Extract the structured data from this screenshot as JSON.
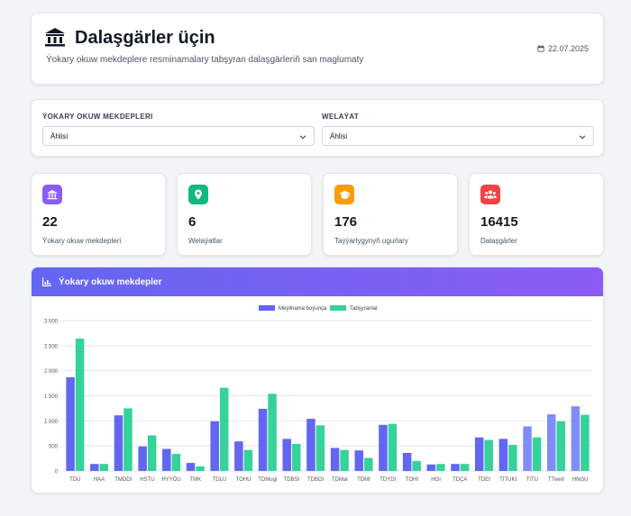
{
  "header": {
    "title": "Dalaşgärler üçin",
    "subtitle": "Ýokary okuw mekdeplere resminamalary tabşyran dalaşgärleriň san maglumaty",
    "date": "22.07.2025"
  },
  "filters": [
    {
      "label": "ÝOKARY OKUW MEKDEPLERI",
      "value": "Ählisi"
    },
    {
      "label": "WELAÝAT",
      "value": "Ählisi"
    }
  ],
  "stats": [
    {
      "value": "22",
      "label": "Ýokary okuw mekdepleri",
      "color": "#8b5cf6",
      "icon": "university-icon"
    },
    {
      "value": "6",
      "label": "Welaýatlar",
      "color": "#10b981",
      "icon": "map-pin-icon"
    },
    {
      "value": "176",
      "label": "Taýýarlygynyň ugurlary",
      "color": "#f59e0b",
      "icon": "graduation-cap-icon"
    },
    {
      "value": "16415",
      "label": "Dalaşgärler",
      "color": "#ef4444",
      "icon": "users-icon"
    }
  ],
  "chart_section": {
    "title": "Ýokary okuw mekdepler",
    "icon": "chart-icon"
  },
  "colors": {
    "accent": "#6366f1",
    "series_1": "#6366f1",
    "series_2": "#34d399",
    "series_1_alt": "#818cf8"
  },
  "chart_data": {
    "type": "bar",
    "categories": [
      "TDU",
      "HAA",
      "TMDDI",
      "HSTU",
      "HYYÖU",
      "TMK",
      "TDLU",
      "TOHU",
      "TDMugi",
      "TDBSI",
      "TDBGI",
      "TDMaI",
      "TDMI",
      "TDYDI",
      "TOHI",
      "HGI",
      "TDÇA",
      "TDEI",
      "TİTUKI",
      "TITU",
      "TTweII",
      "HNGU"
    ],
    "series": [
      {
        "name": "Meýilnama boýunça",
        "values": [
          1870,
          140,
          1110,
          490,
          440,
          160,
          990,
          590,
          1240,
          640,
          1040,
          460,
          410,
          920,
          360,
          130,
          140,
          670,
          640,
          890,
          1130,
          1290
        ]
      },
      {
        "name": "Tabşyranlar",
        "values": [
          2640,
          140,
          1250,
          710,
          340,
          90,
          1660,
          420,
          1540,
          540,
          910,
          420,
          260,
          940,
          200,
          140,
          140,
          620,
          520,
          670,
          990,
          1120
        ]
      }
    ],
    "ylim": [
      0,
      3000
    ],
    "yticks": [
      "0",
      "500",
      "1 000",
      "1 500",
      "2 000",
      "2 500",
      "3 000"
    ],
    "ytick_values": [
      0,
      500,
      1000,
      1500,
      2000,
      2500,
      3000
    ],
    "legend": "top-center",
    "grid": true
  }
}
